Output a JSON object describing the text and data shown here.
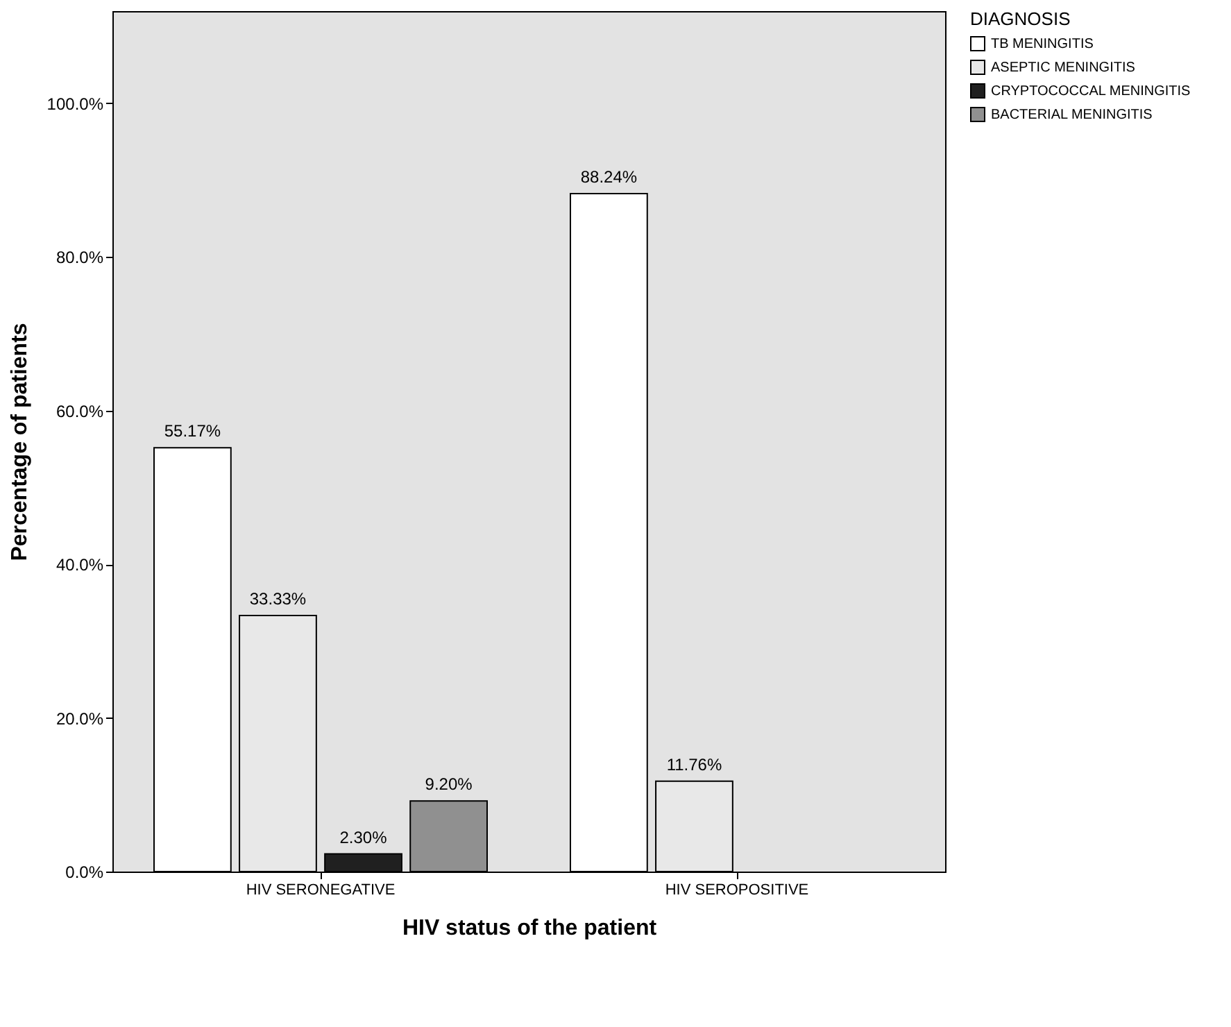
{
  "chart_data": {
    "type": "bar",
    "xlabel": "HIV status of the patient",
    "ylabel": "Percentage of patients",
    "legend_title": "DIAGNOSIS",
    "legend": "top right",
    "categories": [
      "HIV SERONEGATIVE",
      "HIV SEROPOSITIVE"
    ],
    "ylim": [
      0,
      112
    ],
    "yticks": [
      {
        "value": 0,
        "label": "0.0%"
      },
      {
        "value": 20,
        "label": "20.0%"
      },
      {
        "value": 40,
        "label": "40.0%"
      },
      {
        "value": 60,
        "label": "60.0%"
      },
      {
        "value": 80,
        "label": "80.0%"
      },
      {
        "value": 100,
        "label": "100.0%"
      }
    ],
    "series": [
      {
        "name": "TB MENINGITIS",
        "color": "#ffffff",
        "values": [
          55.17,
          88.24
        ],
        "value_labels": [
          "55.17%",
          "88.24%"
        ]
      },
      {
        "name": "ASEPTIC MENINGITIS",
        "color": "#e8e8e8",
        "values": [
          33.33,
          11.76
        ],
        "value_labels": [
          "33.33%",
          "11.76%"
        ]
      },
      {
        "name": "CRYPTOCOCCAL MENINGITIS",
        "color": "#202020",
        "values": [
          2.3,
          null
        ],
        "value_labels": [
          "2.30%",
          null
        ]
      },
      {
        "name": "BACTERIAL MENINGITIS",
        "color": "#909090",
        "values": [
          9.2,
          null
        ],
        "value_labels": [
          "9.20%",
          null
        ]
      }
    ]
  }
}
